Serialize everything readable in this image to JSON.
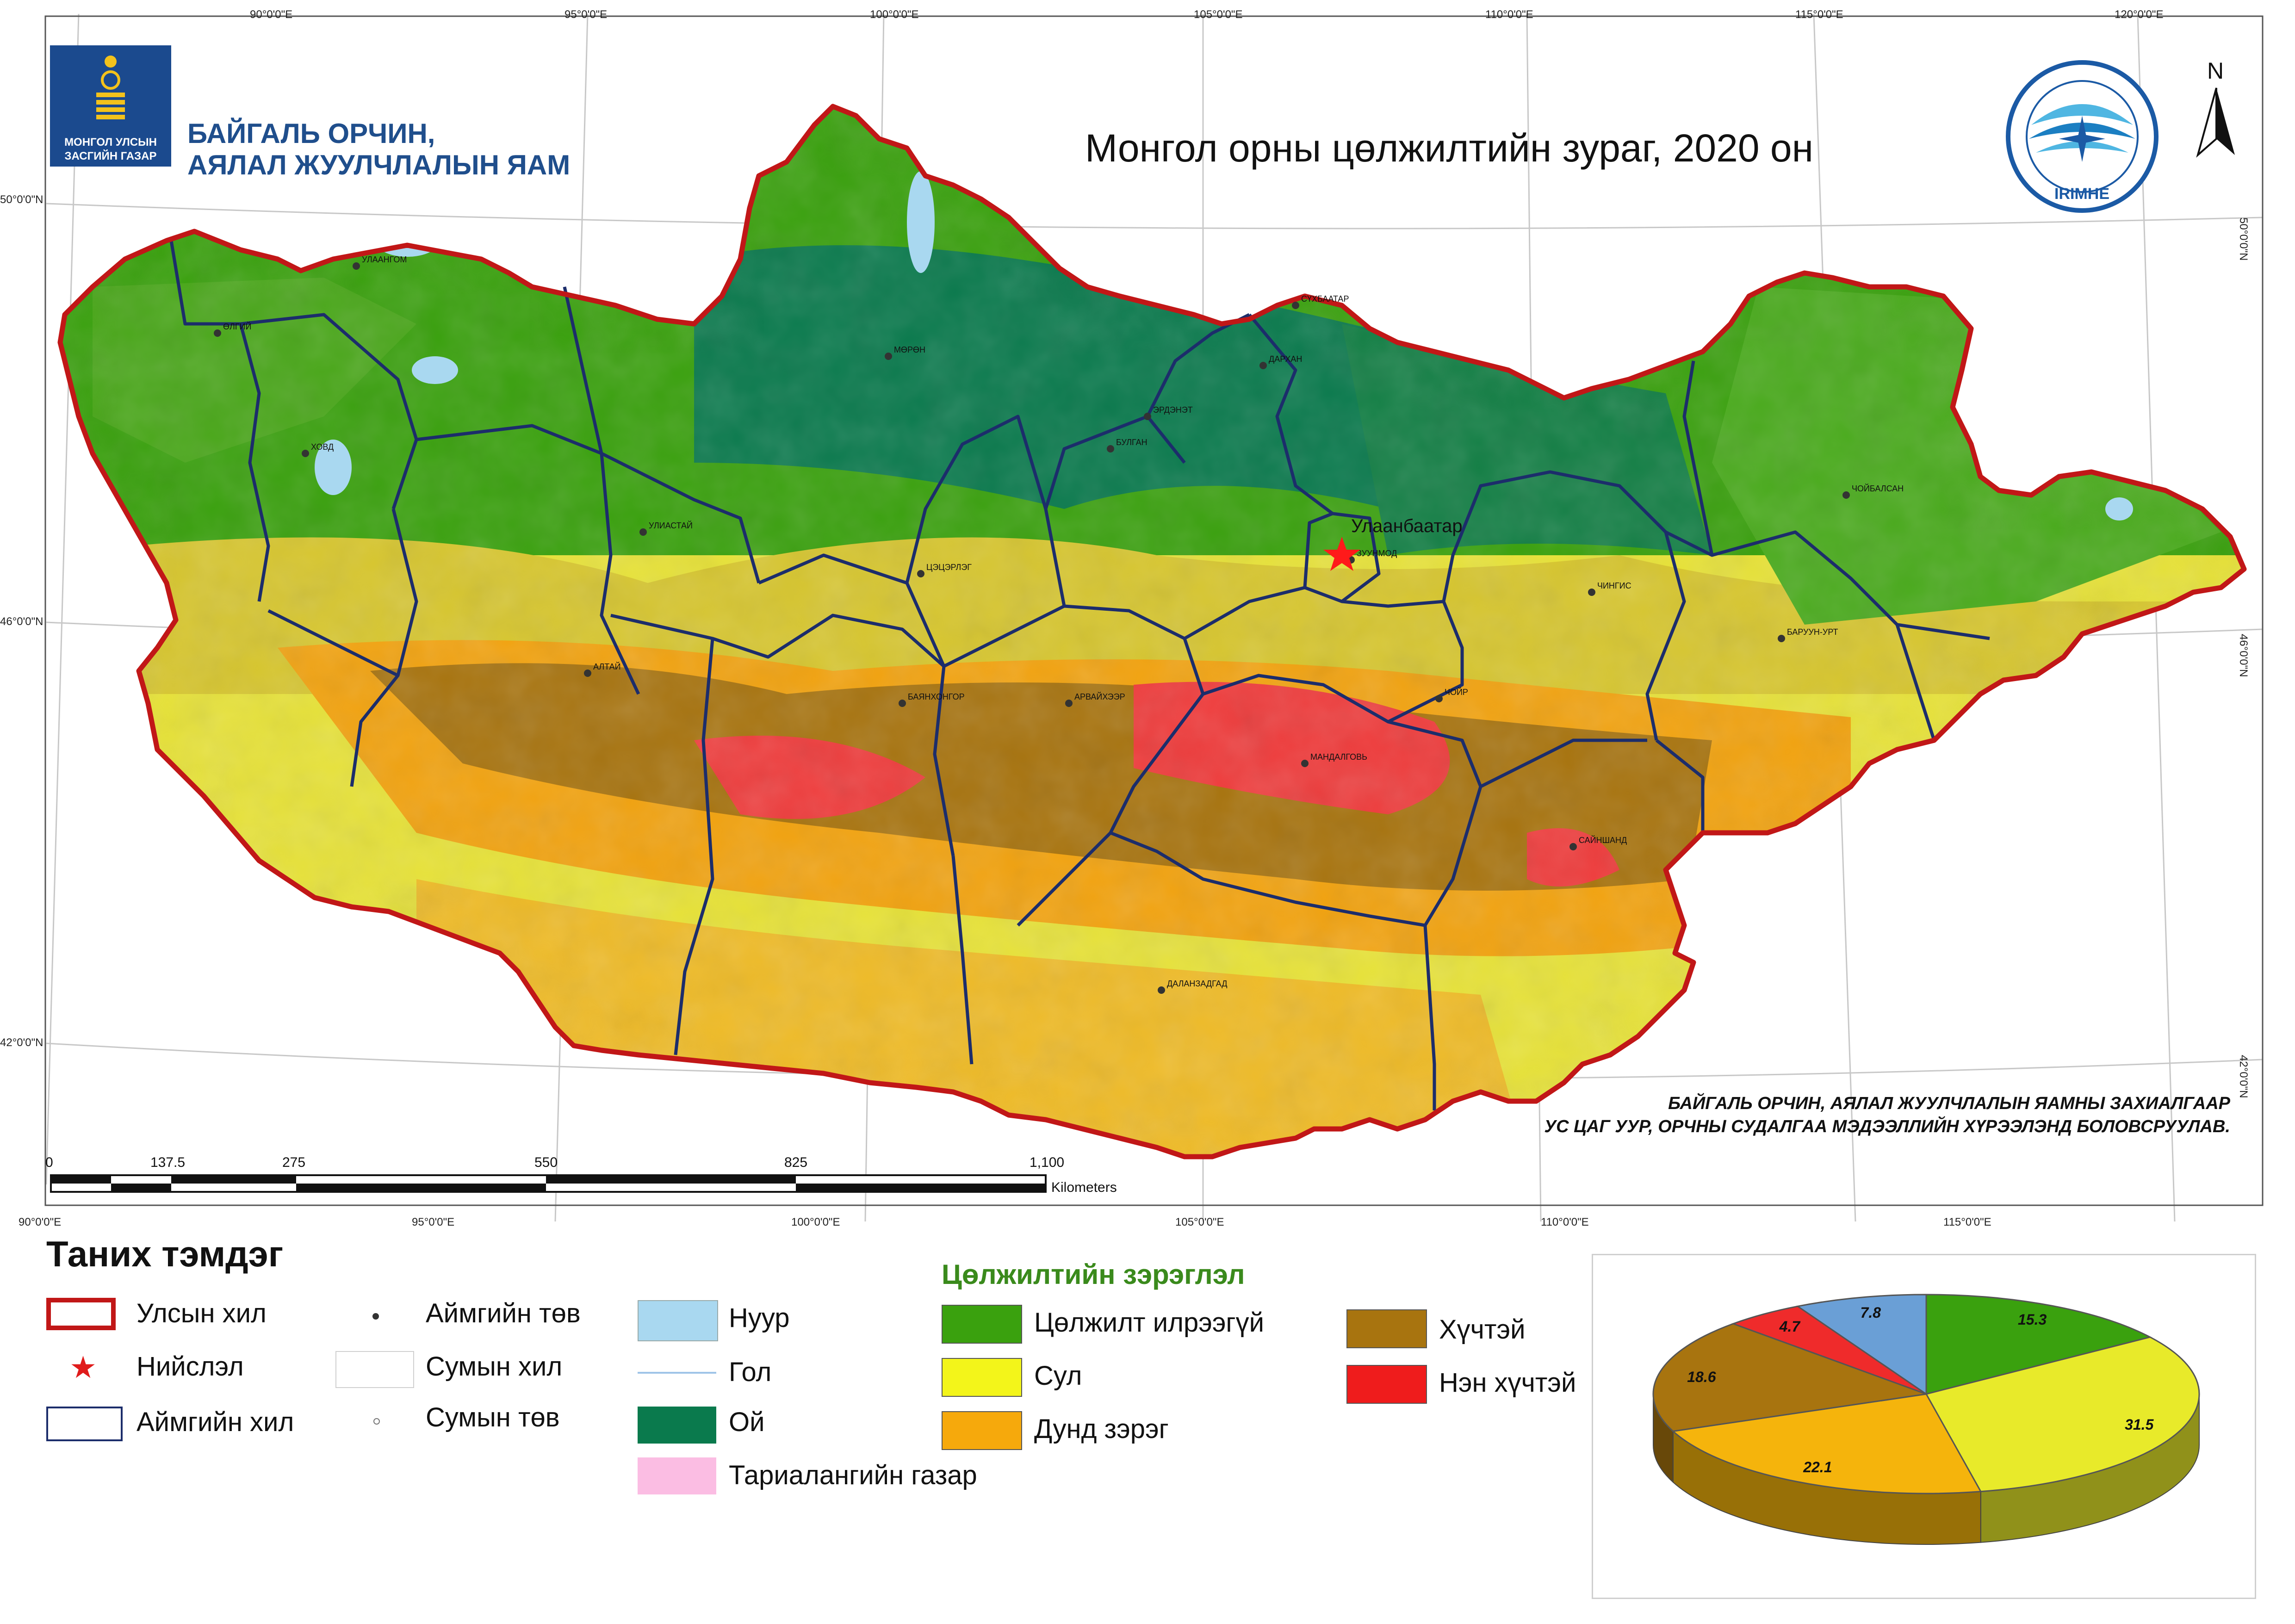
{
  "header": {
    "ministry_line1": "БАЙГАЛЬ ОРЧИН,",
    "ministry_line2": "АЯЛАЛ ЖУУЛЧЛАЛЫН ЯАМ",
    "emblem_line1": "МОНГОЛ УЛСЫН",
    "emblem_line2": "ЗАСГИЙН ГАЗАР",
    "title": "Монгол орны цөлжилтийн зураг, 2020 он",
    "north": "N",
    "irimhe_text": "IRIMHE"
  },
  "coords": {
    "top": [
      "90°0'0\"E",
      "95°0'0\"E",
      "100°0'0\"E",
      "105°0'0\"E",
      "110°0'0\"E",
      "115°0'0\"E",
      "120°0'0\"E"
    ],
    "bottom": [
      "90°0'0\"E",
      "95°0'0\"E",
      "100°0'0\"E",
      "105°0'0\"E",
      "110°0'0\"E",
      "115°0'0\"E"
    ],
    "left": [
      "50°0'0\"N",
      "46°0'0\"N",
      "42°0'0\"N"
    ],
    "right": [
      "50°0'0\"N",
      "46°0'0\"N",
      "42°0'0\"N"
    ]
  },
  "cities": [
    {
      "name": "УЛААНГОМ"
    },
    {
      "name": "ӨЛГИЙ"
    },
    {
      "name": "ХОВД"
    },
    {
      "name": "МӨРӨН"
    },
    {
      "name": "УЛИАСТАЙ"
    },
    {
      "name": "АЛТАЙ"
    },
    {
      "name": "ЦЭЦЭРЛЭГ"
    },
    {
      "name": "БАЯНХОНГОР"
    },
    {
      "name": "АРВАЙХЭЭР"
    },
    {
      "name": "БУЛГАН"
    },
    {
      "name": "ЭРДЭНЭТ"
    },
    {
      "name": "СҮХБААТАР"
    },
    {
      "name": "ДАРХАН"
    },
    {
      "name": "ЗУУНМОД"
    },
    {
      "name": "МАНДАЛГОВЬ"
    },
    {
      "name": "ЧОЙР"
    },
    {
      "name": "САЙНШАНД"
    },
    {
      "name": "ДАЛАНЗАДГАД"
    },
    {
      "name": "ЧИНГИС"
    },
    {
      "name": "БАРУУН-УРТ"
    },
    {
      "name": "ЧОЙБАЛСАН"
    }
  ],
  "capital_label": "Улаанбаатар",
  "credit": {
    "line1": "БАЙГАЛЬ ОРЧИН, АЯЛАЛ ЖУУЛЧЛАЛЫН ЯАМНЫ ЗАХИАЛГААР",
    "line2": "УС ЦАГ УУР, ОРЧНЫ СУДАЛГАА МЭДЭЭЛЛИЙН ХҮРЭЭЛЭНД БОЛОВСРУУЛАВ."
  },
  "scale": {
    "labels": [
      "0",
      "137.5",
      "275",
      "550",
      "825",
      "1,100"
    ],
    "unit": "Kilometers"
  },
  "legend": {
    "title": "Таних тэмдэг",
    "items": [
      {
        "label": "Улсын хил"
      },
      {
        "label": "Нийслэл"
      },
      {
        "label": "Аймгийн хил"
      },
      {
        "label": "Аймгийн төв"
      },
      {
        "label": "Сумын хил"
      },
      {
        "label": "Сумын төв"
      },
      {
        "label": "Нуур",
        "color": "#a9d8f0"
      },
      {
        "label": "Гол"
      },
      {
        "label": "Ой",
        "color": "#0a7a4d"
      },
      {
        "label": "Тариалангийн газар",
        "color": "#fbbde3"
      }
    ]
  },
  "classes": {
    "title": "Цөлжилтийн зэрэглэл",
    "items": [
      {
        "label": "Цөлжилт илрээгүй",
        "color": "#3aa10e"
      },
      {
        "label": "Сул",
        "color": "#f3f51a"
      },
      {
        "label": "Дунд зэрэг",
        "color": "#f6a90c"
      },
      {
        "label": "Хүчтэй",
        "color": "#a8740f"
      },
      {
        "label": "Нэн хүчтэй",
        "color": "#ef1c1c"
      }
    ]
  },
  "chart_data": {
    "type": "pie",
    "title": "",
    "slices": [
      {
        "value": 15.3,
        "color": "#3aa10e"
      },
      {
        "value": 31.5,
        "color": "#e8ea2a"
      },
      {
        "value": 22.1,
        "color": "#f5b40c"
      },
      {
        "value": 18.6,
        "color": "#a8740f"
      },
      {
        "value": 4.7,
        "color": "#ef2b2b"
      },
      {
        "value": 7.8,
        "color": "#6a9fd6"
      }
    ]
  }
}
